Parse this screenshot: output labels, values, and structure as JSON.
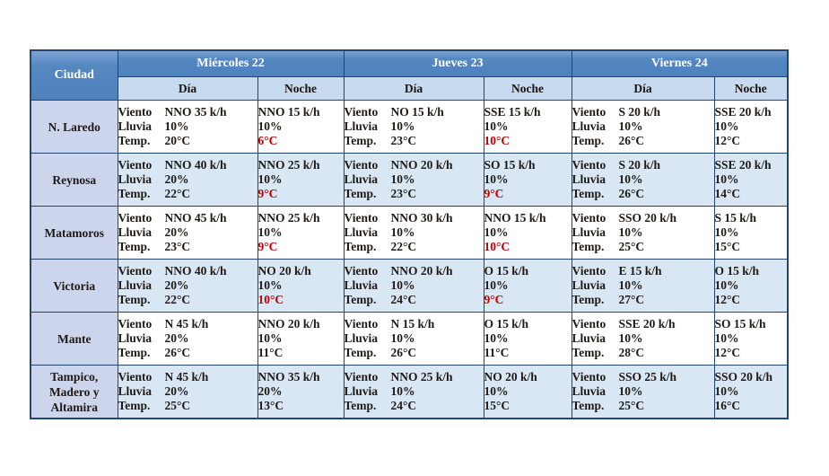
{
  "colors": {
    "header_blue": "#4f81bd",
    "subheader_blue": "#c7daf0",
    "city_column_blue": "#cdd5ec",
    "shaded_row_blue": "#d9e6f3",
    "border_navy": "#24466e",
    "alert_red": "#c00000"
  },
  "table": {
    "city_header": "Ciudad",
    "day_headers": [
      "Miércoles 22",
      "Jueves 23",
      "Viernes 24"
    ],
    "subheaders": {
      "day": "Día",
      "night": "Noche"
    },
    "row_labels": {
      "wind": "Viento",
      "rain": "Lluvia",
      "temp": "Temp."
    },
    "rows": [
      {
        "city": "N. Laredo",
        "shaded": false,
        "cells": [
          {
            "wind": "NNO 35 k/h",
            "rain": "10%",
            "temp": "20°C",
            "temp_red": false
          },
          {
            "wind": "NNO 15 k/h",
            "rain": "10%",
            "temp": "6°C",
            "temp_red": true
          },
          {
            "wind": "NO 15 k/h",
            "rain": "10%",
            "temp": "23°C",
            "temp_red": false
          },
          {
            "wind": "SSE 15 k/h",
            "rain": "10%",
            "temp": "10°C",
            "temp_red": true
          },
          {
            "wind": "S 20 k/h",
            "rain": "10%",
            "temp": "26°C",
            "temp_red": false
          },
          {
            "wind": "SSE 20 k/h",
            "rain": "10%",
            "temp": "12°C",
            "temp_red": false
          }
        ]
      },
      {
        "city": "Reynosa",
        "shaded": true,
        "cells": [
          {
            "wind": "NNO 40 k/h",
            "rain": "20%",
            "temp": "22°C",
            "temp_red": false
          },
          {
            "wind": "NNO 25 k/h",
            "rain": "10%",
            "temp": "9°C",
            "temp_red": true
          },
          {
            "wind": "NNO 20 k/h",
            "rain": "10%",
            "temp": "23°C",
            "temp_red": false
          },
          {
            "wind": "SO 15 k/h",
            "rain": "10%",
            "temp": "9°C",
            "temp_red": true
          },
          {
            "wind": "S 20 k/h",
            "rain": "10%",
            "temp": "26°C",
            "temp_red": false
          },
          {
            "wind": "SSE 20 k/h",
            "rain": "10%",
            "temp": "14°C",
            "temp_red": false
          }
        ]
      },
      {
        "city": "Matamoros",
        "shaded": false,
        "cells": [
          {
            "wind": "NNO 45 k/h",
            "rain": "20%",
            "temp": "23°C",
            "temp_red": false
          },
          {
            "wind": "NNO 25 k/h",
            "rain": "10%",
            "temp": "9°C",
            "temp_red": true
          },
          {
            "wind": "NNO 30 k/h",
            "rain": "10%",
            "temp": "22°C",
            "temp_red": false
          },
          {
            "wind": "NNO 15 k/h",
            "rain": "10%",
            "temp": "10°C",
            "temp_red": true
          },
          {
            "wind": "SSO 20 k/h",
            "rain": "10%",
            "temp": "25°C",
            "temp_red": false
          },
          {
            "wind": "S 15 k/h",
            "rain": "10%",
            "temp": "15°C",
            "temp_red": false
          }
        ]
      },
      {
        "city": "Victoria",
        "shaded": true,
        "cells": [
          {
            "wind": "NNO 40 k/h",
            "rain": "20%",
            "temp": "22°C",
            "temp_red": false
          },
          {
            "wind": "NO 20 k/h",
            "rain": "10%",
            "temp": "10°C",
            "temp_red": true
          },
          {
            "wind": "NNO 20 k/h",
            "rain": "10%",
            "temp": "24°C",
            "temp_red": false
          },
          {
            "wind": "O 15 k/h",
            "rain": "10%",
            "temp": "9°C",
            "temp_red": true
          },
          {
            "wind": "E 15 k/h",
            "rain": "10%",
            "temp": "27°C",
            "temp_red": false
          },
          {
            "wind": "O 15 k/h",
            "rain": "10%",
            "temp": "12°C",
            "temp_red": false
          }
        ]
      },
      {
        "city": "Mante",
        "shaded": false,
        "cells": [
          {
            "wind": "N 45 k/h",
            "rain": "20%",
            "temp": "26°C",
            "temp_red": false
          },
          {
            "wind": "NNO 20 k/h",
            "rain": "10%",
            "temp": "11°C",
            "temp_red": false
          },
          {
            "wind": "N 15 k/h",
            "rain": "10%",
            "temp": "26°C",
            "temp_red": false
          },
          {
            "wind": "O 15 k/h",
            "rain": "10%",
            "temp": "11°C",
            "temp_red": false
          },
          {
            "wind": "SSE 20 k/h",
            "rain": "10%",
            "temp": "28°C",
            "temp_red": false
          },
          {
            "wind": "SO 15 k/h",
            "rain": "10%",
            "temp": "12°C",
            "temp_red": false
          }
        ]
      },
      {
        "city": "Tampico,\nMadero y\nAltamira",
        "shaded": true,
        "cells": [
          {
            "wind": "N 45 k/h",
            "rain": "20%",
            "temp": "25°C",
            "temp_red": false
          },
          {
            "wind": "NNO 35 k/h",
            "rain": "20%",
            "temp": "13°C",
            "temp_red": false
          },
          {
            "wind": "NNO 25 k/h",
            "rain": "10%",
            "temp": "24°C",
            "temp_red": false
          },
          {
            "wind": "NO 20 k/h",
            "rain": "10%",
            "temp": "15°C",
            "temp_red": false
          },
          {
            "wind": "SSO 25 k/h",
            "rain": "10%",
            "temp": "25°C",
            "temp_red": false
          },
          {
            "wind": "SSO 20 k/h",
            "rain": "10%",
            "temp": "16°C",
            "temp_red": false
          }
        ]
      }
    ]
  }
}
